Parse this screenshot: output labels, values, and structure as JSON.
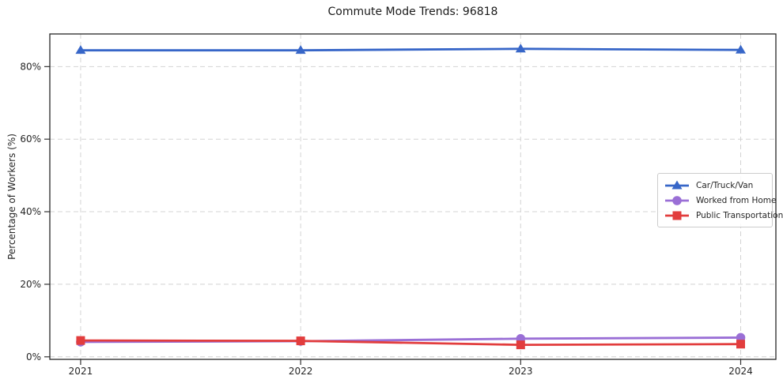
{
  "figure": {
    "title": "Commute Mode Trends: 96818"
  },
  "chart_data": {
    "type": "line",
    "title": "Commute Mode Trends: 96818",
    "xlabel": "",
    "ylabel": "Percentage of Workers (%)",
    "x": [
      2021,
      2022,
      2023,
      2024
    ],
    "x_labels": [
      "2021",
      "2022",
      "2023",
      "2024"
    ],
    "series": [
      {
        "name": "Car/Truck/Van",
        "marker": "triangle",
        "color": "#3766c8",
        "values": [
          84.5,
          84.5,
          84.9,
          84.6
        ]
      },
      {
        "name": "Worked from Home",
        "marker": "circle",
        "color": "#9a6fd6",
        "values": [
          4.1,
          4.3,
          5.0,
          5.3
        ]
      },
      {
        "name": "Public Transportation",
        "marker": "square",
        "color": "#e23d3d",
        "values": [
          4.5,
          4.4,
          3.3,
          3.5
        ]
      }
    ],
    "yticks": [
      0,
      20,
      40,
      60,
      80
    ],
    "ytick_labels": [
      "0%",
      "20%",
      "40%",
      "60%",
      "80%"
    ],
    "ylim": [
      -0.7,
      89.0
    ],
    "xlim": [
      2020.86,
      2024.16
    ],
    "grid": true,
    "grid_style": "dashed",
    "legend": {
      "position": "center-right",
      "entries": [
        "Car/Truck/Van",
        "Worked from Home",
        "Public Transportation"
      ]
    }
  }
}
